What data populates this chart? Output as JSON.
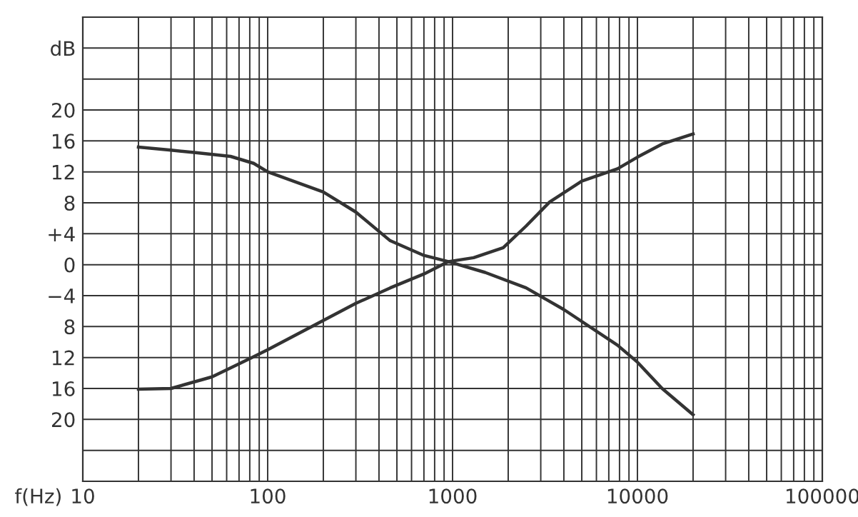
{
  "chart_data": {
    "type": "line",
    "xlabel": "f(Hz)",
    "log": "x",
    "grid": true,
    "marker": "none",
    "line_style": "solid",
    "xlim": [
      10,
      100000
    ],
    "ylim": [
      -28,
      32
    ],
    "xticks": [
      10,
      {
        "value": 20,
        "label": null
      },
      {
        "value": 30,
        "label": null
      },
      {
        "value": 40,
        "label": null
      },
      {
        "value": 50,
        "label": null
      },
      {
        "value": 60,
        "label": null
      },
      {
        "value": 70,
        "label": null
      },
      {
        "value": 80,
        "label": null
      },
      {
        "value": 90,
        "label": null
      },
      100,
      {
        "value": 200,
        "label": null
      },
      {
        "value": 300,
        "label": null
      },
      {
        "value": 400,
        "label": null
      },
      {
        "value": 500,
        "label": null
      },
      {
        "value": 600,
        "label": null
      },
      {
        "value": 700,
        "label": null
      },
      {
        "value": 800,
        "label": null
      },
      {
        "value": 900,
        "label": null
      },
      1000,
      {
        "value": 2000,
        "label": null
      },
      {
        "value": 3000,
        "label": null
      },
      {
        "value": 4000,
        "label": null
      },
      {
        "value": 5000,
        "label": null
      },
      {
        "value": 6000,
        "label": null
      },
      {
        "value": 7000,
        "label": null
      },
      {
        "value": 8000,
        "label": null
      },
      {
        "value": 9000,
        "label": null
      },
      10000,
      {
        "value": 20000,
        "label": null
      },
      {
        "value": 30000,
        "label": null
      },
      {
        "value": 40000,
        "label": null
      },
      {
        "value": 50000,
        "label": null
      },
      {
        "value": 60000,
        "label": null
      },
      {
        "value": 70000,
        "label": null
      },
      {
        "value": 80000,
        "label": null
      },
      {
        "value": 90000,
        "label": null
      },
      100000
    ],
    "yticks": [
      {
        "value": 28,
        "label": "dB"
      },
      {
        "value": 24,
        "label": null
      },
      20,
      16,
      12,
      8,
      {
        "value": 4,
        "label": "+4"
      },
      0,
      {
        "value": -4,
        "label": "−4"
      },
      {
        "value": -8,
        "label": "8"
      },
      {
        "value": -12,
        "label": "12"
      },
      {
        "value": -16,
        "label": "16"
      },
      {
        "value": -20,
        "label": "20"
      },
      {
        "value": -24,
        "label": null
      }
    ],
    "series": [
      {
        "color": "#333333",
        "x": [
          20,
          30,
          40,
          63,
          84,
          100,
          200,
          300,
          460,
          700,
          950,
          1500,
          2500,
          4000,
          7800,
          10000,
          13600,
          20000
        ],
        "values": [
          15.2,
          14.8,
          14.5,
          14,
          13.1,
          12,
          9.4,
          6.8,
          3.1,
          1.2,
          0.4,
          -1,
          -3,
          -5.8,
          -10.4,
          -12.6,
          -16,
          -19.4
        ]
      },
      {
        "color": "#333333",
        "x": [
          20,
          30,
          50,
          84,
          100,
          200,
          300,
          460,
          700,
          950,
          1300,
          1880,
          2500,
          3350,
          5000,
          7800,
          10000,
          13600,
          20000
        ],
        "values": [
          -16.1,
          -16,
          -14.5,
          -11.9,
          -11,
          -7.2,
          -5,
          -3,
          -1.2,
          0.4,
          0.9,
          2.2,
          5,
          8.1,
          10.8,
          12.4,
          13.9,
          15.6,
          16.9
        ]
      }
    ]
  }
}
